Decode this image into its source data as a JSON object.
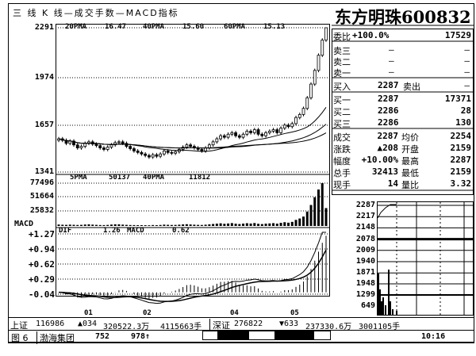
{
  "header": {
    "menu_title": "三 线 K 线—成交手数—MACD指标"
  },
  "stock": {
    "name_code": "东方明珠600832"
  },
  "ma_legend": {
    "ma20_label": "20PMA",
    "ma20": "16.47",
    "ma40_label": "40PMA",
    "ma40": "15.60",
    "ma60_label": "60PMA",
    "ma60": "15.13"
  },
  "vol_legend": {
    "ma5_label": "5PMA",
    "ma5": "50137",
    "ma40_label": "40PMA",
    "ma40": "11812"
  },
  "macd_legend": {
    "dif_label": "DIF",
    "dif": "1.26",
    "macd_label": "MACD",
    "macd": "0.62",
    "panel_label": "MACD"
  },
  "quote": {
    "weibi_label": "委比",
    "weibi": "+100.0%",
    "weibi_vol": "17529",
    "sell": [
      {
        "label": "卖三",
        "price": "—",
        "vol": "—"
      },
      {
        "label": "卖二",
        "price": "—",
        "vol": "—"
      },
      {
        "label": "卖一",
        "price": "—",
        "vol": "—"
      }
    ],
    "buy_in_label": "买入",
    "buy_in": "2287",
    "sell_out_label": "卖出",
    "sell_out": "—",
    "buy": [
      {
        "label": "买一",
        "price": "2287",
        "vol": "17371"
      },
      {
        "label": "买二",
        "price": "2286",
        "vol": "28"
      },
      {
        "label": "买三",
        "price": "2286",
        "vol": "130"
      }
    ],
    "stats": [
      {
        "l1": "成交",
        "v1": "2287",
        "l2": "均价",
        "v2": "2254"
      },
      {
        "l1": "涨跌",
        "v1": "▲208",
        "l2": "开盘",
        "v2": "2159"
      },
      {
        "l1": "幅度",
        "v1": "+10.00%",
        "l2": "最高",
        "v2": "2287"
      },
      {
        "l1": "总手",
        "v1": "32413",
        "l2": "最低",
        "v2": "2159"
      },
      {
        "l1": "现手",
        "v1": "14",
        "l2": "量比",
        "v2": "3.32"
      }
    ]
  },
  "intraday": {
    "price_ticks": [
      "2287",
      "2217",
      "2148",
      "2078",
      "2009",
      "1940",
      "1871"
    ],
    "vol_ticks": [
      "1948",
      "1299",
      "649"
    ]
  },
  "status": {
    "sh_label": "上证",
    "sh_index": "116986",
    "sh_change": "▲034",
    "sh_amount": "320522.3万",
    "sh_vol": "4115663手",
    "sz_label": "深证",
    "sz_index": "276822",
    "sz_change": "▼633",
    "sz_amount": "237330.6万",
    "sz_vol": "3001105手",
    "page": "图 6",
    "news_stock": "渤海集团",
    "news_price": "752",
    "news_vol": "978↑",
    "time": "10:16"
  },
  "chart_data": [
    {
      "type": "candlestick",
      "ylim": [
        1341,
        2291
      ],
      "y_ticks": [
        "2291",
        "1974",
        "1657",
        "1341"
      ],
      "x_ticks": [
        "01",
        "02",
        "04",
        "05"
      ],
      "x_tick_index": [
        7,
        22,
        45,
        61
      ],
      "closes": [
        1560,
        1550,
        1530,
        1545,
        1520,
        1500,
        1510,
        1530,
        1540,
        1525,
        1515,
        1500,
        1490,
        1505,
        1520,
        1535,
        1540,
        1530,
        1510,
        1495,
        1480,
        1470,
        1460,
        1450,
        1440,
        1455,
        1445,
        1460,
        1480,
        1470,
        1465,
        1475,
        1490,
        1505,
        1520,
        1510,
        1500,
        1490,
        1480,
        1500,
        1520,
        1540,
        1560,
        1580,
        1570,
        1590,
        1600,
        1580,
        1570,
        1590,
        1610,
        1600,
        1620,
        1590,
        1580,
        1600,
        1610,
        1620,
        1600,
        1630,
        1650,
        1640,
        1660,
        1700,
        1720,
        1760,
        1830,
        1920,
        2010,
        2110,
        2210,
        2291
      ]
    },
    {
      "type": "bar",
      "ylim": [
        0,
        77496
      ],
      "y_ticks": [
        "77496",
        "51664",
        "25832"
      ],
      "volumes": [
        2600,
        2200,
        2000,
        2400,
        2100,
        1800,
        2000,
        2600,
        2900,
        2400,
        2000,
        1700,
        1600,
        1900,
        2500,
        3000,
        2900,
        2400,
        2000,
        1700,
        1600,
        1500,
        1500,
        1400,
        1300,
        1700,
        1500,
        1800,
        2400,
        2100,
        1800,
        1900,
        2300,
        2800,
        3200,
        2700,
        2300,
        2000,
        1800,
        2300,
        2900,
        3600,
        4200,
        4800,
        3900,
        4500,
        5200,
        4100,
        3500,
        4300,
        5000,
        4400,
        5300,
        3900,
        3400,
        4200,
        4600,
        5100,
        4200,
        5600,
        6800,
        5900,
        7400,
        11000,
        13500,
        17000,
        26000,
        38000,
        52000,
        66000,
        77496,
        32413
      ]
    },
    {
      "type": "line",
      "ylim": [
        -0.04,
        1.27
      ],
      "y_ticks": [
        "+1.27",
        "+0.94",
        "+0.62",
        "+0.29",
        "-0.04"
      ]
    }
  ]
}
